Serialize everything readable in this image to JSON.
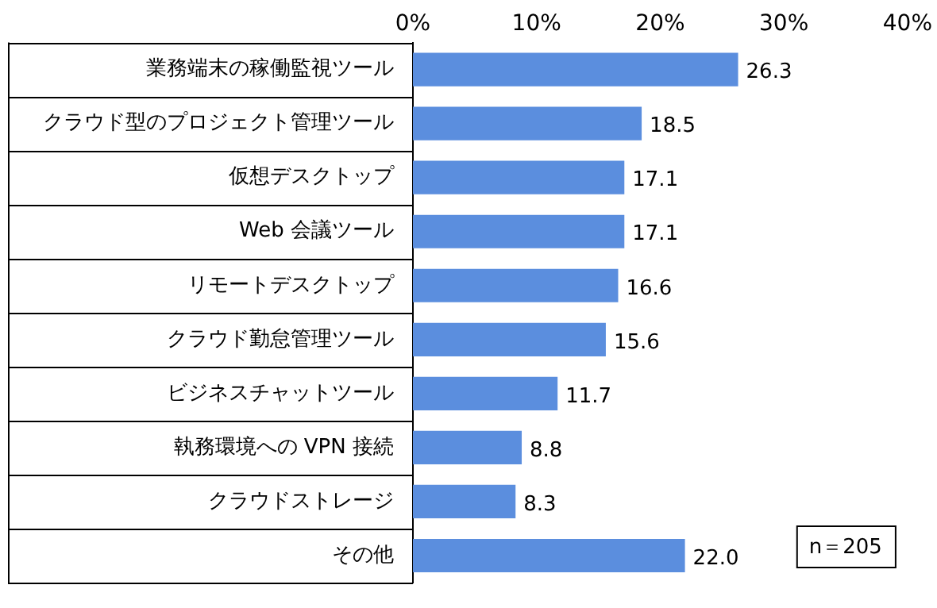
{
  "chart_data": {
    "type": "bar",
    "orientation": "horizontal",
    "categories": [
      "業務端末の稼働監視ツール",
      "クラウド型のプロジェクト管理ツール",
      "仮想デスクトップ",
      "Web 会議ツール",
      "リモートデスクトップ",
      "クラウド勤怠管理ツール",
      "ビジネスチャットツール",
      "執務環境への VPN 接続",
      "クラウドストレージ",
      "その他"
    ],
    "values": [
      26.3,
      18.5,
      17.1,
      17.1,
      16.6,
      15.6,
      11.7,
      8.8,
      8.3,
      22.0
    ],
    "value_labels": [
      "26.3",
      "18.5",
      "17.1",
      "17.1",
      "16.6",
      "15.6",
      "11.7",
      "8.8",
      "8.3",
      "22.0"
    ],
    "color": "#5b8ede",
    "xlim": [
      0,
      40
    ],
    "xticks": [
      {
        "value": 0,
        "label": "0%"
      },
      {
        "value": 10,
        "label": "10%"
      },
      {
        "value": 20,
        "label": "20%"
      },
      {
        "value": 30,
        "label": "30%"
      },
      {
        "value": 40,
        "label": "40%"
      }
    ],
    "grid": false,
    "legend": false,
    "annotations": [
      "n＝205"
    ]
  }
}
